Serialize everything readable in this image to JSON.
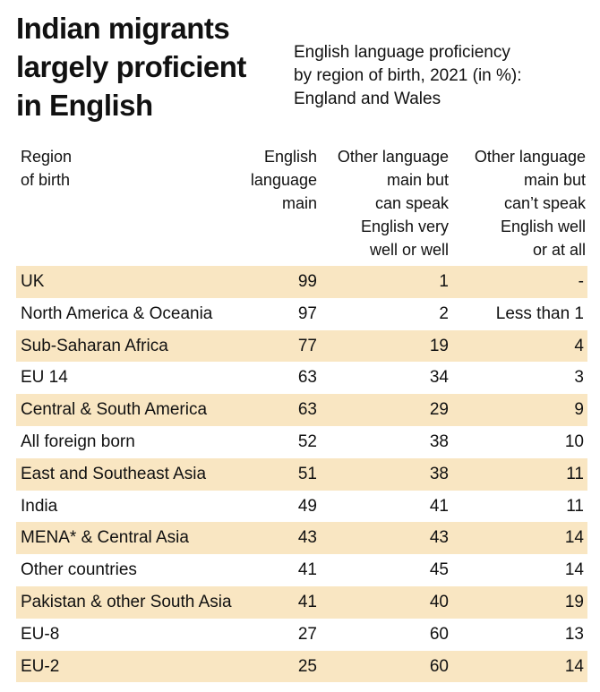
{
  "headline": "Indian migrants\nlargely proficient\nin English",
  "subtitle": "English language proficiency\nby region of birth, 2021 (in %):\nEngland and Wales",
  "chart_data": {
    "type": "table",
    "title": "English language proficiency by region of birth, 2021 (in %): England and Wales",
    "columns": [
      "Region\nof birth",
      "English\nlanguage\nmain",
      "Other language\nmain but\ncan speak\nEnglish very\nwell or well",
      "Other language\nmain but\ncan’t speak\nEnglish well\nor at all"
    ],
    "rows": [
      {
        "region": "UK",
        "english_main": "99",
        "other_speak_well": "1",
        "other_not_well": "-"
      },
      {
        "region": "North America & Oceania",
        "english_main": "97",
        "other_speak_well": "2",
        "other_not_well": "Less than 1"
      },
      {
        "region": "Sub-Saharan Africa",
        "english_main": "77",
        "other_speak_well": "19",
        "other_not_well": "4"
      },
      {
        "region": "EU 14",
        "english_main": "63",
        "other_speak_well": "34",
        "other_not_well": "3"
      },
      {
        "region": "Central & South America",
        "english_main": "63",
        "other_speak_well": "29",
        "other_not_well": "9"
      },
      {
        "region": "All foreign born",
        "english_main": "52",
        "other_speak_well": "38",
        "other_not_well": "10"
      },
      {
        "region": "East and Southeast Asia",
        "english_main": "51",
        "other_speak_well": "38",
        "other_not_well": "11"
      },
      {
        "region": "India",
        "english_main": "49",
        "other_speak_well": "41",
        "other_not_well": "11"
      },
      {
        "region": "MENA* & Central Asia",
        "english_main": "43",
        "other_speak_well": "43",
        "other_not_well": "14"
      },
      {
        "region": "Other countries",
        "english_main": "41",
        "other_speak_well": "45",
        "other_not_well": "14"
      },
      {
        "region": "Pakistan & other South Asia",
        "english_main": "41",
        "other_speak_well": "40",
        "other_not_well": "19"
      },
      {
        "region": "EU-8",
        "english_main": "27",
        "other_speak_well": "60",
        "other_not_well": "13"
      },
      {
        "region": "EU-2",
        "english_main": "25",
        "other_speak_well": "60",
        "other_not_well": "14"
      }
    ]
  },
  "colors": {
    "row_shade": "#f9e6c2",
    "text": "#111111",
    "background": "#ffffff"
  }
}
